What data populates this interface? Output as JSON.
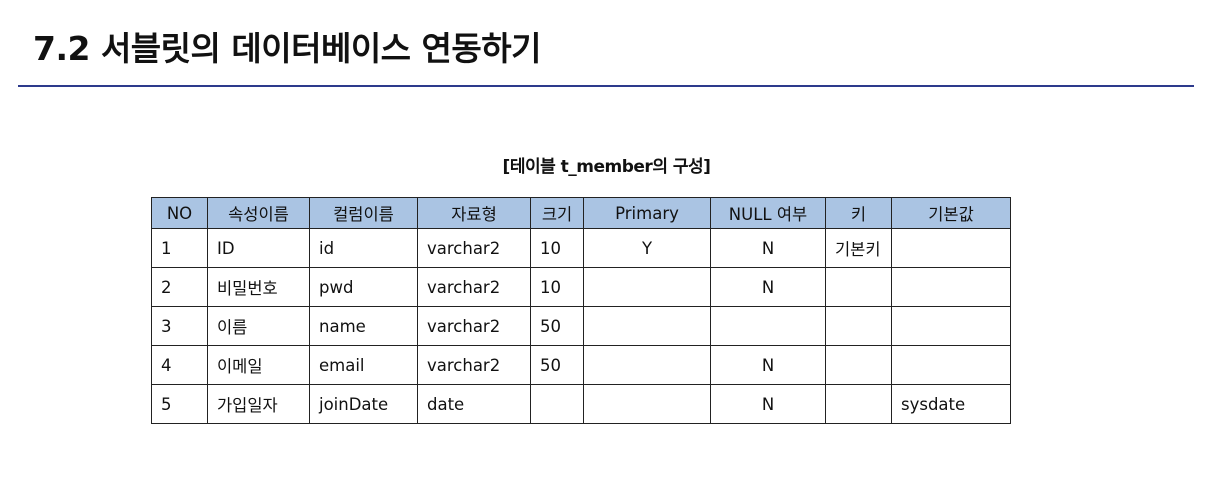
{
  "page": {
    "title": "7.2 서블릿의 데이터베이스 연동하기"
  },
  "table": {
    "caption": "[테이블 t_member의 구성]",
    "headers": [
      "NO",
      "속성이름",
      "컬럼이름",
      "자료형",
      "크기",
      "Primary",
      "NULL 여부",
      "키",
      "기본값"
    ],
    "rows": [
      [
        "1",
        "ID",
        "id",
        "varchar2",
        "10",
        "Y",
        "N",
        "기본키",
        ""
      ],
      [
        "2",
        "비밀번호",
        "pwd",
        "varchar2",
        "10",
        "",
        "N",
        "",
        ""
      ],
      [
        "3",
        "이름",
        "name",
        "varchar2",
        "50",
        "",
        "",
        "",
        ""
      ],
      [
        "4",
        "이메일",
        "email",
        "varchar2",
        "50",
        "",
        "N",
        "",
        ""
      ],
      [
        "5",
        "가입일자",
        "joinDate",
        "date",
        "",
        "",
        "N",
        "",
        "sysdate"
      ]
    ]
  },
  "colors": {
    "header_fill": "#aac4e3",
    "title_rule": "#2d3a8c"
  }
}
